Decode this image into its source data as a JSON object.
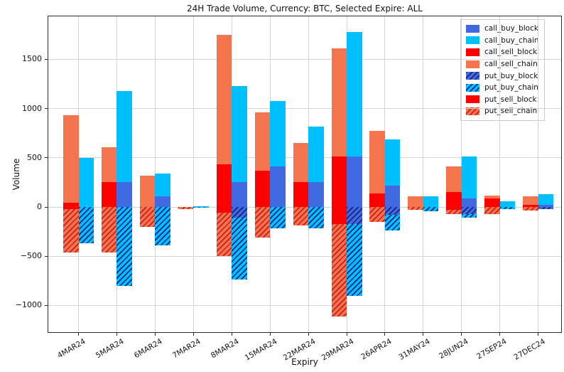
{
  "figure": {
    "background_color": "#ffffff",
    "grid_color": "#d4d4d4",
    "spine_color": "#2b2b2b",
    "text_color": "#111111"
  },
  "chart_data": {
    "type": "bar",
    "title": "24H Trade Volume, Currency: BTC, Selected Expire: ALL",
    "xlabel": "Expiry",
    "ylabel": "Volume",
    "grid": true,
    "legend_position": "upper right",
    "bar_layout": "two stacked bars per category: left=sell stack, right=buy stack; put_* series plotted as negative (hatched)",
    "categories": [
      "4MAR24",
      "5MAR24",
      "6MAR24",
      "7MAR24",
      "8MAR24",
      "15MAR24",
      "22MAR24",
      "29MAR24",
      "26APR24",
      "31MAY24",
      "28JUN24",
      "27SEP24",
      "27DEC24"
    ],
    "yticks": [
      -1000,
      -500,
      0,
      500,
      1000,
      1500
    ],
    "ylim": [
      -1280,
      1945
    ],
    "series": [
      {
        "name": "call_buy_block",
        "bar": "buy",
        "sign": 1,
        "color": "#4169E1",
        "hatch": false,
        "values": [
          0,
          250,
          110,
          0,
          250,
          410,
          250,
          510,
          220,
          0,
          85,
          0,
          25
        ]
      },
      {
        "name": "call_buy_chain",
        "bar": "buy",
        "sign": 1,
        "color": "#00BFFF",
        "hatch": false,
        "values": [
          500,
          930,
          230,
          10,
          980,
          670,
          570,
          1270,
          470,
          105,
          425,
          55,
          105
        ]
      },
      {
        "name": "call_sell_block",
        "bar": "sell",
        "sign": 1,
        "color": "#FF0000",
        "hatch": false,
        "values": [
          40,
          250,
          0,
          0,
          430,
          370,
          250,
          510,
          140,
          0,
          155,
          90,
          20
        ]
      },
      {
        "name": "call_sell_chain",
        "bar": "sell",
        "sign": 1,
        "color": "#F4744E",
        "hatch": false,
        "values": [
          890,
          360,
          320,
          0,
          1320,
          590,
          400,
          1100,
          630,
          110,
          255,
          25,
          85
        ]
      },
      {
        "name": "put_buy_block",
        "bar": "buy",
        "sign": -1,
        "color": "#4169E1",
        "hatch": true,
        "hatch_color": "#15247d",
        "values": [
          0,
          0,
          0,
          0,
          110,
          0,
          0,
          170,
          80,
          0,
          70,
          0,
          25
        ]
      },
      {
        "name": "put_buy_chain",
        "bar": "buy",
        "sign": -1,
        "color": "#00BFFF",
        "hatch": true,
        "hatch_color": "#15247d",
        "values": [
          365,
          800,
          390,
          10,
          630,
          220,
          215,
          730,
          160,
          40,
          35,
          25,
          0
        ]
      },
      {
        "name": "put_sell_block",
        "bar": "sell",
        "sign": -1,
        "color": "#FF0000",
        "hatch": true,
        "hatch_color": "#FF0000",
        "values": [
          25,
          0,
          0,
          0,
          55,
          0,
          0,
          170,
          0,
          0,
          30,
          0,
          0
        ]
      },
      {
        "name": "put_sell_chain",
        "bar": "sell",
        "sign": -1,
        "color": "#F4744E",
        "hatch": true,
        "hatch_color": "#d11a1a",
        "values": [
          435,
          460,
          200,
          25,
          445,
          310,
          190,
          940,
          150,
          30,
          45,
          70,
          35
        ]
      }
    ],
    "legend_entries": [
      "call_buy_block",
      "call_buy_chain",
      "call_sell_block",
      "call_sell_chain",
      "put_buy_block",
      "put_buy_chain",
      "put_sell_block",
      "put_sell_chain"
    ]
  }
}
